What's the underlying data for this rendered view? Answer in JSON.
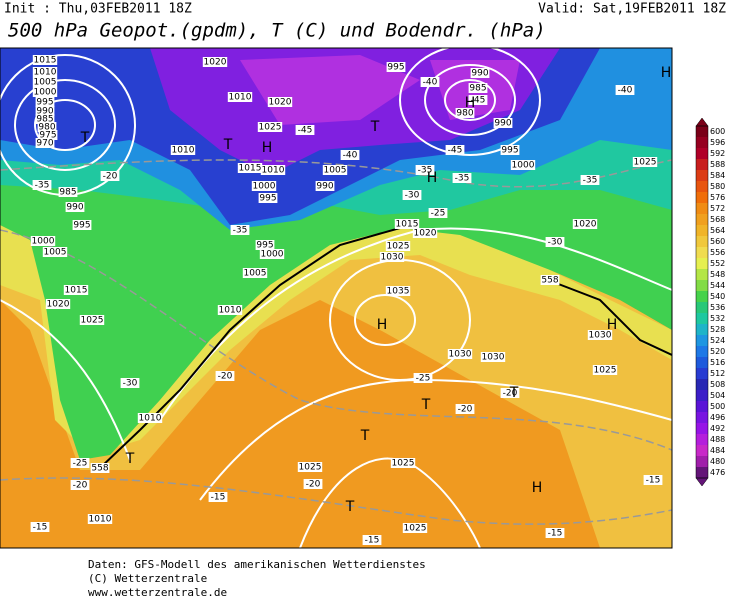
{
  "header": {
    "init": "Init : Thu,03FEB2011 18Z",
    "valid": "Valid: Sat,19FEB2011 18Z",
    "title": "500 hPa Geopot.(gpdm), T (C) und Bodendr. (hPa)"
  },
  "map": {
    "pressure_labels": [
      1015,
      1010,
      1005,
      1000,
      995,
      990,
      985,
      980,
      975,
      970,
      1020,
      1010,
      1020,
      1025,
      1010,
      1015,
      1010,
      1000,
      995,
      990,
      1005,
      995,
      990,
      985,
      980,
      990,
      995,
      1000,
      1025,
      1020,
      1015,
      1020,
      1025,
      1030,
      1035,
      1030,
      1030,
      1030,
      1025,
      1010,
      1010,
      1005,
      995,
      1000,
      1020,
      1015,
      1025,
      1005,
      1000,
      995,
      990,
      985,
      1025,
      1025,
      1025,
      1010
    ],
    "temperature_labels": [
      -40,
      -40,
      -45,
      -45,
      -40,
      -35,
      -45,
      -35,
      -35,
      -30,
      -35,
      -30,
      -35,
      -20,
      -25,
      -25,
      -20,
      -30,
      -25,
      -20,
      -15,
      -20,
      -20,
      -15,
      -15,
      -15,
      -15,
      -20
    ],
    "contour_labels": [
      558,
      558
    ],
    "markers": [
      "T",
      "T",
      "H",
      "T",
      "H",
      "H",
      "H",
      "T",
      "T",
      "T",
      "H",
      "T",
      "H",
      "H",
      "T"
    ]
  },
  "colorbar": {
    "levels": [
      {
        "value": 600,
        "color": "#7a0018"
      },
      {
        "value": 596,
        "color": "#960020"
      },
      {
        "value": 592,
        "color": "#b00028"
      },
      {
        "value": 588,
        "color": "#c81e1e"
      },
      {
        "value": 584,
        "color": "#dc3c14"
      },
      {
        "value": 580,
        "color": "#e8550f"
      },
      {
        "value": 576,
        "color": "#f06e0a"
      },
      {
        "value": 572,
        "color": "#f08c14"
      },
      {
        "value": 568,
        "color": "#f0a01e"
      },
      {
        "value": 564,
        "color": "#f0b428"
      },
      {
        "value": 560,
        "color": "#f0c83c"
      },
      {
        "value": 556,
        "color": "#f0dc50"
      },
      {
        "value": 552,
        "color": "#e6f050"
      },
      {
        "value": 548,
        "color": "#b4e646"
      },
      {
        "value": 544,
        "color": "#82dc46"
      },
      {
        "value": 540,
        "color": "#46d24b"
      },
      {
        "value": 536,
        "color": "#28c878"
      },
      {
        "value": 532,
        "color": "#1ec8a0"
      },
      {
        "value": 528,
        "color": "#1eb4c8"
      },
      {
        "value": 524,
        "color": "#1e96e1"
      },
      {
        "value": 520,
        "color": "#1e78e6"
      },
      {
        "value": 516,
        "color": "#1e5adc"
      },
      {
        "value": 512,
        "color": "#283cd2"
      },
      {
        "value": 508,
        "color": "#2828b4"
      },
      {
        "value": 504,
        "color": "#3c1ec8"
      },
      {
        "value": 500,
        "color": "#5a14d7"
      },
      {
        "value": 496,
        "color": "#7814e1"
      },
      {
        "value": 492,
        "color": "#9614e6"
      },
      {
        "value": 488,
        "color": "#b41edc"
      },
      {
        "value": 484,
        "color": "#c828c8"
      },
      {
        "value": 480,
        "color": "#a01eaa"
      },
      {
        "value": 476,
        "color": "#641478"
      }
    ]
  },
  "footer": [
    "Daten: GFS-Modell des amerikanischen Wetterdienstes",
    "(C) Wetterzentrale",
    "www.wetterzentrale.de"
  ]
}
